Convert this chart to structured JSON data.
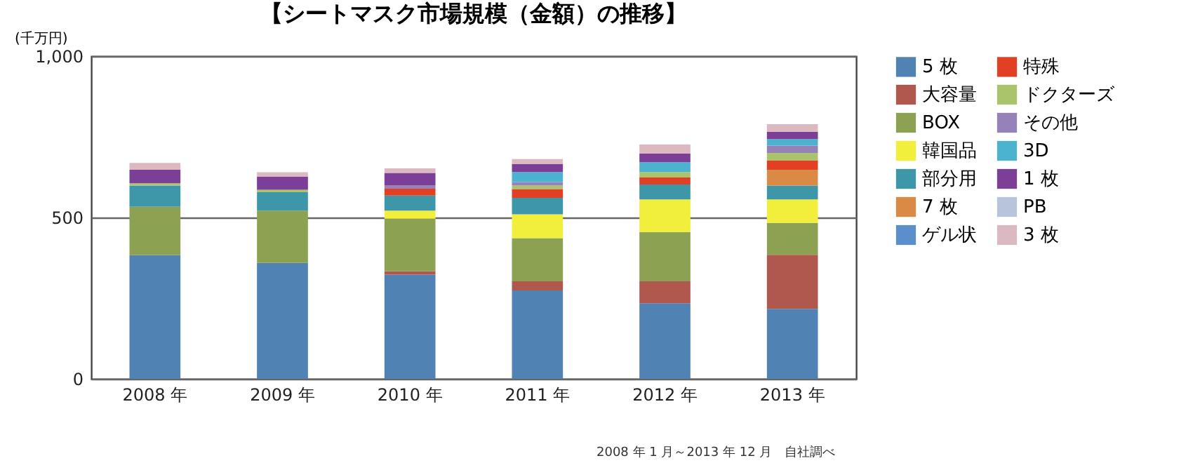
{
  "chart_data": {
    "type": "bar",
    "title": "【シートマスク市場規模（金額）の推移】",
    "ylabel": "(千万円)",
    "categories": [
      "2008 年",
      "2009 年",
      "2010 年",
      "2011 年",
      "2012 年",
      "2013 年"
    ],
    "stacked": true,
    "series": [
      {
        "name": "5 枚",
        "color": "#5082b4",
        "values": [
          383,
          359,
          323,
          274,
          234,
          217
        ]
      },
      {
        "name": "大容量",
        "color": "#b0574e",
        "values": [
          0,
          0,
          10,
          28,
          68,
          167
        ]
      },
      {
        "name": "BOX",
        "color": "#8ca252",
        "values": [
          150,
          162,
          163,
          134,
          153,
          99
        ]
      },
      {
        "name": "韓国品",
        "color": "#f2ee3c",
        "values": [
          0,
          0,
          25,
          74,
          101,
          73
        ]
      },
      {
        "name": "部分用",
        "color": "#3e97a8",
        "values": [
          66,
          57,
          47,
          51,
          46,
          43
        ]
      },
      {
        "name": "7 枚",
        "color": "#da8a45",
        "values": [
          0,
          0,
          0,
          0,
          0,
          49
        ]
      },
      {
        "name": "ゲル状",
        "color": "#5b8fcc",
        "values": [
          0,
          0,
          0,
          0,
          0,
          0
        ]
      },
      {
        "name": "特殊",
        "color": "#e24024",
        "values": [
          0,
          0,
          21,
          27,
          22,
          29
        ]
      },
      {
        "name": "ドクターズ",
        "color": "#a9c46a",
        "values": [
          7,
          8,
          0,
          11,
          17,
          23
        ]
      },
      {
        "name": "その他",
        "color": "#9681b8",
        "values": [
          0,
          0,
          10,
          11,
          0,
          23
        ]
      },
      {
        "name": "3D",
        "color": "#4bb3cf",
        "values": [
          0,
          0,
          0,
          31,
          30,
          20
        ]
      },
      {
        "name": "1 枚",
        "color": "#7b3f98",
        "values": [
          42,
          40,
          39,
          24,
          27,
          23
        ]
      },
      {
        "name": "PB",
        "color": "#b8c4dc",
        "values": [
          0,
          0,
          0,
          0,
          0,
          0
        ]
      },
      {
        "name": "3 枚",
        "color": "#dcb8c0",
        "values": [
          21,
          14,
          14,
          16,
          28,
          23
        ]
      }
    ],
    "ylim": [
      0,
      1000
    ],
    "yticks": [
      0,
      500,
      {
        "value": 1000,
        "label": "1,000"
      }
    ],
    "grid": "y",
    "legend": "right",
    "annotations": [
      "2008 年 1 月～2013 年 12 月　自社調べ"
    ]
  }
}
